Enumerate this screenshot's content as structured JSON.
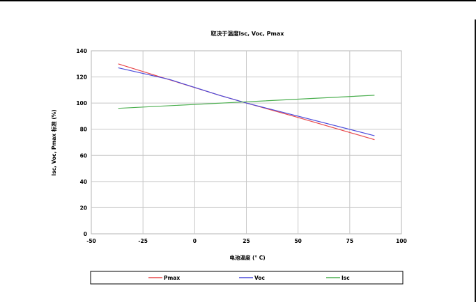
{
  "chart_data": {
    "type": "line",
    "title": "取决于温度Isc, Voc, Pmax",
    "xlabel": "电池温度 (° C)",
    "ylabel": "Isc, Voc, Pmax 标准 (%)",
    "xlim": [
      -50,
      100
    ],
    "ylim": [
      0,
      140
    ],
    "xticks": [
      -50,
      -25,
      0,
      25,
      50,
      75,
      100
    ],
    "yticks": [
      0,
      20,
      40,
      60,
      80,
      100,
      120,
      140
    ],
    "grid": true,
    "legend_position": "bottom",
    "series": [
      {
        "name": "Pmax",
        "color": "#e8484b",
        "x": [
          -37,
          12,
          25,
          50,
          87
        ],
        "y": [
          130,
          106,
          100,
          89,
          72
        ]
      },
      {
        "name": "Voc",
        "color": "#4b4bdc",
        "x": [
          -37,
          -12,
          12,
          25,
          50,
          87
        ],
        "y": [
          127,
          118,
          106,
          100,
          90,
          75
        ]
      },
      {
        "name": "Isc",
        "color": "#4caf50",
        "x": [
          -37,
          25,
          87
        ],
        "y": [
          96,
          101,
          106
        ]
      }
    ]
  }
}
